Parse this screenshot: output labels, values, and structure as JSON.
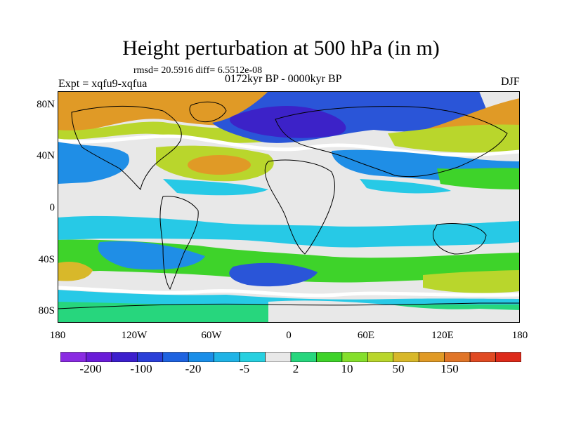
{
  "title": "Height perturbation at 500 hPa (in m)",
  "stats": "rmsd= 20.5916 diff= 6.5512e-08",
  "left_label": "Expt = xqfu9-xqfua",
  "center_label": "0172kyr BP - 0000kyr BP",
  "right_label": "DJF",
  "lat_ticks": [
    "80N",
    "40N",
    "0",
    "40S",
    "80S"
  ],
  "lon_ticks": [
    "180",
    "120W",
    "60W",
    "0",
    "60E",
    "120E",
    "180"
  ],
  "colorbar": {
    "labels": [
      "-200",
      "-100",
      "-20",
      "-5",
      "2",
      "10",
      "50",
      "150"
    ],
    "colors": [
      "#8a2be2",
      "#6a1cd8",
      "#3c1fcd",
      "#2a3fd8",
      "#1e63e0",
      "#1a8ee8",
      "#1fb3e6",
      "#27d0e0",
      "#e8e8e8",
      "#27d67d",
      "#3ed32a",
      "#85df2c",
      "#b9d62c",
      "#d8b82a",
      "#e09a26",
      "#e07528",
      "#e04a23",
      "#dd2a1a"
    ]
  },
  "map_colors": {
    "neutral": "#e8e8e8",
    "light_blue": "#27c9e6",
    "mid_blue": "#1f8ee6",
    "blue": "#2a55d8",
    "dark_blue": "#3c22c8",
    "green": "#3ed32a",
    "light_green": "#27d67d",
    "yellow_green": "#b9d62c",
    "yellow": "#d8b82a",
    "orange": "#e09a26",
    "white_band": "#ffffff"
  }
}
